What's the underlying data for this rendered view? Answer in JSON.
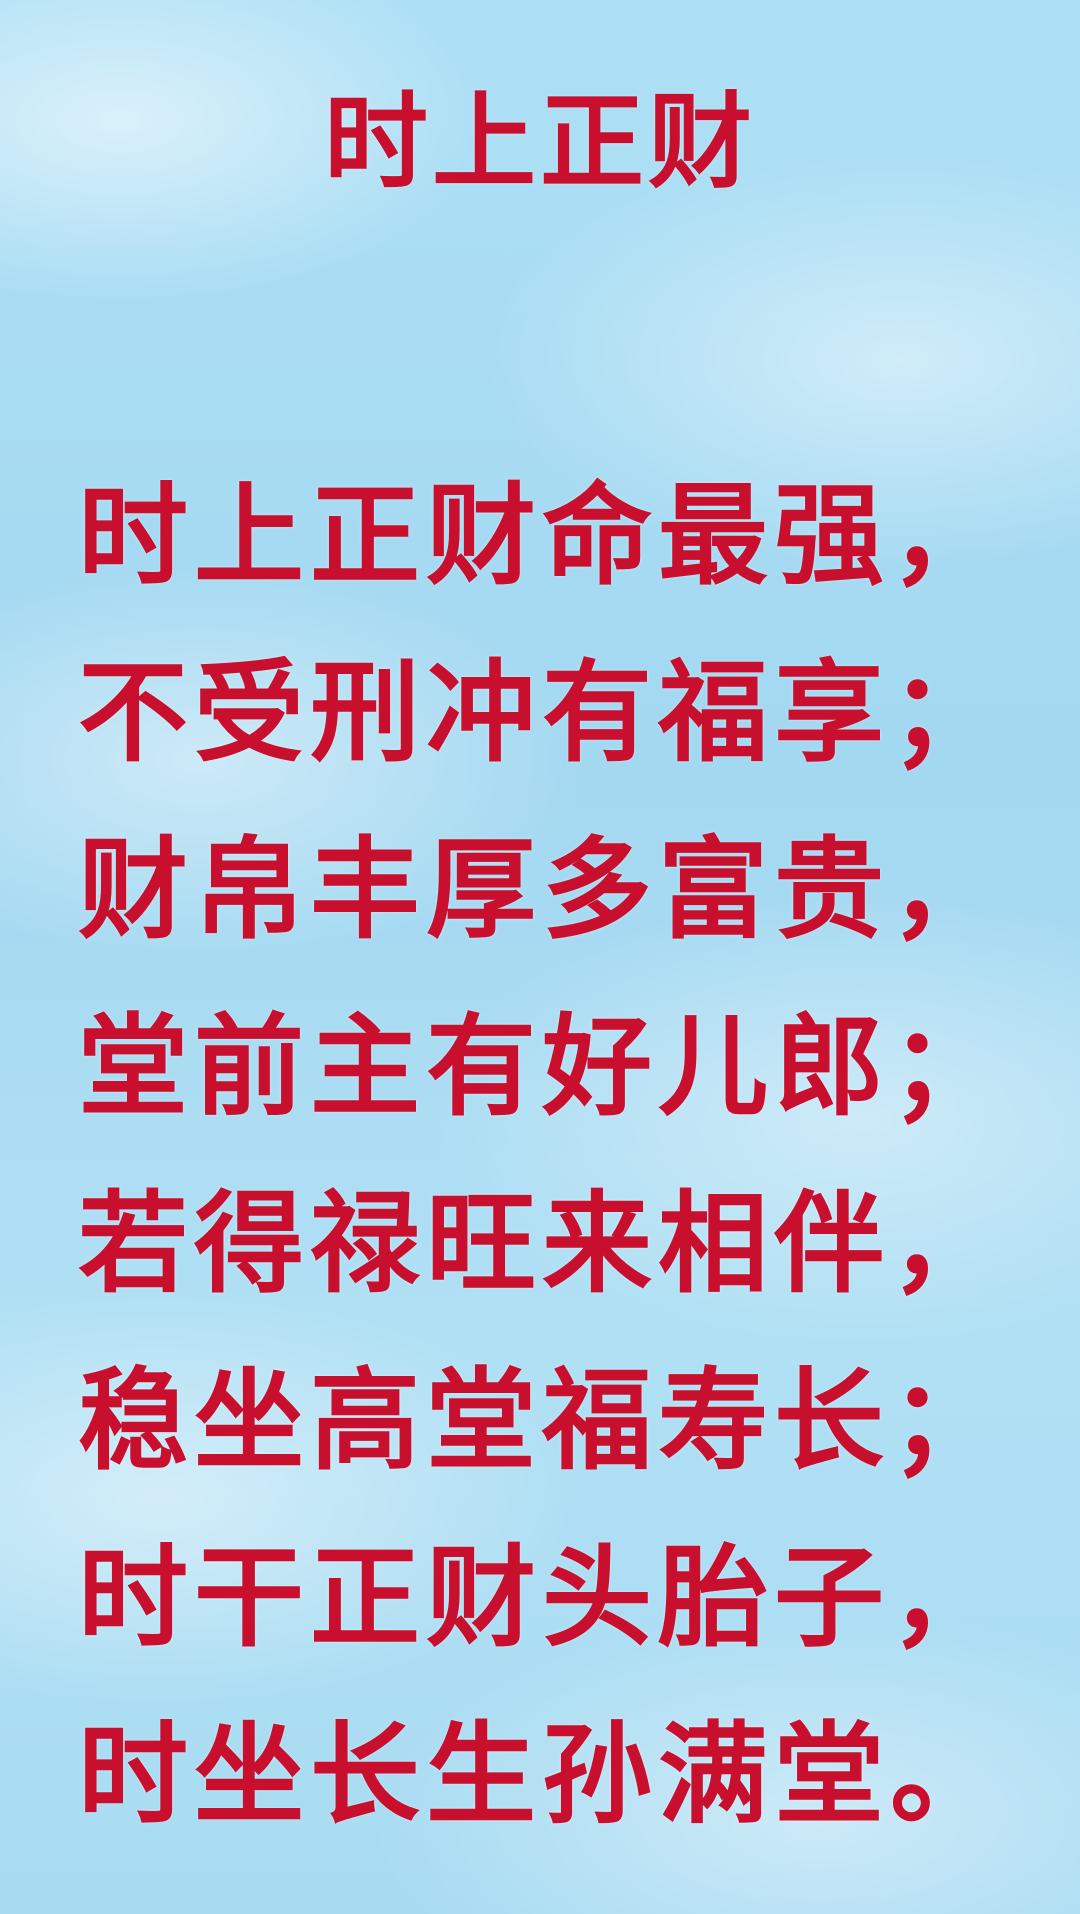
{
  "title": "时上正财",
  "poem": [
    "时上正财命最强，",
    "不受刑冲有福享；",
    "财帛丰厚多富贵，",
    "堂前主有好儿郎；",
    "若得禄旺来相伴，",
    "稳坐高堂福寿长；",
    "时干正财头胎子，",
    "时坐长生孙满堂。"
  ],
  "colors": {
    "text": "#c8102e",
    "background": "#a9dcf2"
  }
}
